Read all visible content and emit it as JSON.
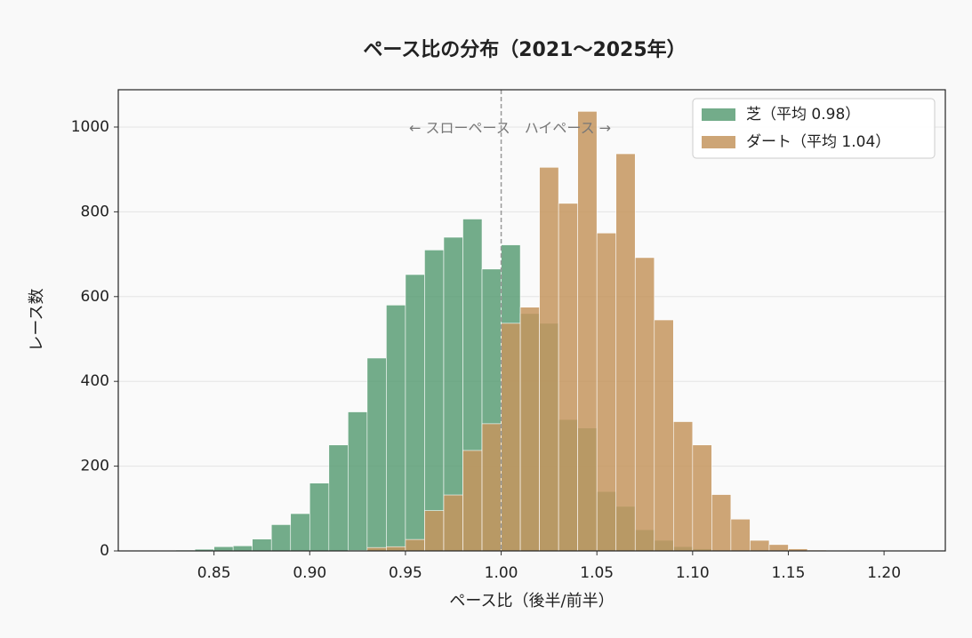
{
  "chart_data": {
    "type": "histogram",
    "title": "ペース比の分布（2021〜2025年）",
    "x_label": "ペース比（後半/前半）",
    "y_label": "レース数",
    "annotation": "← スローペース　ハイペース →",
    "vline": {
      "value": 1.0,
      "color": "#999999",
      "style": "dashed"
    },
    "bins": [
      0.82,
      0.83,
      0.84,
      0.85,
      0.86,
      0.87,
      0.88,
      0.89,
      0.9,
      0.91,
      0.92,
      0.93,
      0.94,
      0.95,
      0.96,
      0.97,
      0.98,
      0.99,
      1.0,
      1.01,
      1.02,
      1.03,
      1.04,
      1.05,
      1.06,
      1.07,
      1.08,
      1.09,
      1.1,
      1.11,
      1.12,
      1.13,
      1.14,
      1.15,
      1.16,
      1.17,
      1.18,
      1.19,
      1.2,
      1.21,
      1.22
    ],
    "series": [
      {
        "name": "芝（平均 0.98）",
        "color": "#5a9e76",
        "values": [
          1,
          2,
          4,
          10,
          12,
          28,
          62,
          88,
          160,
          250,
          328,
          455,
          580,
          652,
          710,
          740,
          783,
          665,
          722,
          560,
          537,
          310,
          290,
          140,
          105,
          50,
          25,
          10,
          5,
          2,
          1,
          0,
          0,
          0,
          0,
          0,
          0,
          0,
          0,
          0
        ]
      },
      {
        "name": "ダート（平均 1.04）",
        "color": "#c4955e",
        "values": [
          0,
          0,
          0,
          0,
          0,
          0,
          0,
          0,
          0,
          0,
          1,
          8,
          10,
          27,
          95,
          132,
          237,
          300,
          537,
          575,
          905,
          820,
          1037,
          750,
          937,
          692,
          545,
          305,
          250,
          133,
          75,
          25,
          15,
          5,
          2,
          1,
          0,
          0,
          0,
          0
        ]
      }
    ],
    "xlim": [
      0.8,
      1.232
    ],
    "ylim": [
      0,
      1088
    ],
    "xticks": [
      0.85,
      {
        "value": 0.9,
        "label": "0.90"
      },
      0.95,
      {
        "value": 1.0,
        "label": "1.00"
      },
      1.05,
      {
        "value": 1.1,
        "label": "1.10"
      },
      1.15,
      {
        "value": 1.2,
        "label": "1.20"
      }
    ],
    "yticks": [
      0,
      200,
      400,
      600,
      800,
      1000
    ],
    "grid": true,
    "legend": "upper right"
  }
}
